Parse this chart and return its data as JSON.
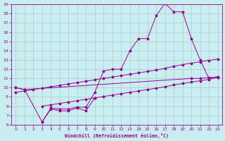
{
  "xlabel": "Windchill (Refroidissement éolien,°C)",
  "bg_color": "#c8eef0",
  "line_color": "#990099",
  "grid_color": "#b0c8c8",
  "xlim": [
    -0.5,
    23.5
  ],
  "ylim": [
    6,
    19
  ],
  "xticks": [
    0,
    1,
    2,
    3,
    4,
    5,
    6,
    7,
    8,
    9,
    10,
    11,
    12,
    13,
    14,
    15,
    16,
    17,
    18,
    19,
    20,
    21,
    22,
    23
  ],
  "yticks": [
    6,
    7,
    8,
    9,
    10,
    11,
    12,
    13,
    14,
    15,
    16,
    17,
    18,
    19
  ],
  "line_flat_x": [
    0,
    1,
    20,
    21,
    22,
    23
  ],
  "line_flat_y": [
    10.0,
    9.8,
    11.0,
    11.0,
    11.1,
    11.1
  ],
  "line_big_x": [
    0,
    1,
    3,
    4,
    5,
    6,
    7,
    8,
    9,
    10,
    11,
    12,
    13,
    14,
    15,
    16,
    17,
    18,
    19,
    20,
    21,
    22,
    23
  ],
  "line_big_y": [
    10.0,
    9.8,
    6.3,
    7.8,
    7.7,
    7.7,
    7.9,
    7.9,
    9.5,
    11.8,
    12.0,
    12.0,
    14.0,
    15.3,
    15.3,
    17.8,
    19.1,
    18.2,
    18.2,
    15.3,
    13.0,
    11.0,
    11.2
  ],
  "line_diag1_x": [
    0,
    1,
    2,
    3,
    4,
    5,
    6,
    7,
    8,
    9,
    10,
    11,
    12,
    13,
    14,
    15,
    16,
    17,
    18,
    19,
    20,
    21,
    22,
    23
  ],
  "line_diag1_y": [
    9.5,
    9.65,
    9.8,
    9.95,
    10.1,
    10.25,
    10.4,
    10.55,
    10.7,
    10.85,
    11.0,
    11.15,
    11.3,
    11.45,
    11.6,
    11.75,
    11.9,
    12.1,
    12.3,
    12.5,
    12.65,
    12.8,
    12.95,
    13.1
  ],
  "line_diag2_x": [
    3,
    4,
    5,
    6,
    7,
    8,
    9,
    10,
    11,
    12,
    13,
    14,
    15,
    16,
    17,
    18,
    19,
    20,
    21,
    22,
    23
  ],
  "line_diag2_y": [
    8.0,
    8.15,
    8.3,
    8.45,
    8.6,
    8.75,
    8.9,
    9.05,
    9.2,
    9.35,
    9.5,
    9.65,
    9.8,
    9.95,
    10.1,
    10.3,
    10.45,
    10.6,
    10.75,
    10.9,
    11.1
  ],
  "line_short_x": [
    3,
    4,
    5,
    6,
    7,
    8,
    9
  ],
  "line_short_y": [
    6.3,
    7.7,
    7.5,
    7.5,
    7.8,
    7.5,
    8.9
  ]
}
